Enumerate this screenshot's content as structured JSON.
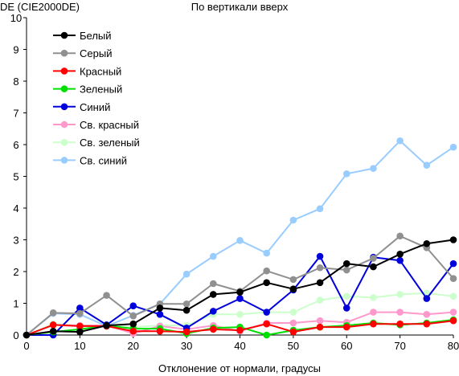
{
  "chart_data": {
    "type": "line",
    "title": "По вертикали вверх",
    "ylabel": "DE (CIE2000DE)",
    "xlabel": "Отклонение от нормали, градусы",
    "xlim": [
      0,
      80
    ],
    "ylim": [
      0,
      10
    ],
    "x_ticks": [
      0,
      10,
      20,
      30,
      40,
      50,
      60,
      70,
      80
    ],
    "y_ticks": [
      0,
      1,
      2,
      3,
      4,
      5,
      6,
      7,
      8,
      9,
      10
    ],
    "x": [
      0,
      5,
      10,
      15,
      20,
      25,
      30,
      35,
      40,
      45,
      50,
      55,
      60,
      65,
      70,
      75,
      80
    ],
    "legend_position": "top-left",
    "series": [
      {
        "name": "Белый",
        "color": "#000000",
        "values": [
          0,
          0.12,
          0.1,
          0.3,
          0.35,
          0.85,
          0.78,
          1.28,
          1.35,
          1.65,
          1.45,
          1.65,
          2.25,
          2.15,
          2.55,
          2.88,
          3.0
        ]
      },
      {
        "name": "Серый",
        "color": "#909090",
        "values": [
          0,
          0.7,
          0.68,
          1.25,
          0.6,
          0.98,
          0.98,
          1.62,
          1.38,
          2.02,
          1.75,
          2.12,
          2.05,
          2.42,
          3.12,
          2.75,
          1.78
        ]
      },
      {
        "name": "Красный",
        "color": "#ff0000",
        "values": [
          0,
          0.32,
          0.28,
          0.28,
          0.12,
          0.12,
          0.1,
          0.18,
          0.15,
          0.35,
          0.1,
          0.25,
          0.25,
          0.35,
          0.35,
          0.35,
          0.45
        ]
      },
      {
        "name": "Зеленый",
        "color": "#00e000",
        "values": [
          0,
          0.1,
          0.18,
          0.3,
          0.2,
          0.2,
          0.05,
          0.22,
          0.25,
          0.0,
          0.15,
          0.25,
          0.3,
          0.38,
          0.32,
          0.38,
          0.48
        ]
      },
      {
        "name": "Синий",
        "color": "#0000dd",
        "values": [
          0,
          0.0,
          0.85,
          0.32,
          0.92,
          0.65,
          0.22,
          0.75,
          1.15,
          0.72,
          1.42,
          2.48,
          0.85,
          2.45,
          2.35,
          1.15,
          2.25
        ]
      },
      {
        "name": "Св. красный",
        "color": "#ff99cc",
        "values": [
          0,
          0.32,
          0.3,
          0.3,
          0.05,
          0.28,
          0.18,
          0.3,
          0.12,
          0.38,
          0.38,
          0.45,
          0.4,
          0.72,
          0.72,
          0.65,
          0.72
        ]
      },
      {
        "name": "Св. зеленый",
        "color": "#ccffcc",
        "values": [
          0,
          0.35,
          0.3,
          0.3,
          0.25,
          0.3,
          0.3,
          0.65,
          0.65,
          0.72,
          0.72,
          1.1,
          1.22,
          1.18,
          1.28,
          1.32,
          1.22
        ]
      },
      {
        "name": "Св. синий",
        "color": "#99ccff",
        "values": [
          0,
          0.68,
          0.65,
          0.28,
          0.62,
          0.98,
          1.92,
          2.48,
          2.98,
          2.58,
          3.62,
          3.98,
          5.08,
          5.25,
          6.12,
          5.35,
          5.92
        ]
      }
    ]
  }
}
